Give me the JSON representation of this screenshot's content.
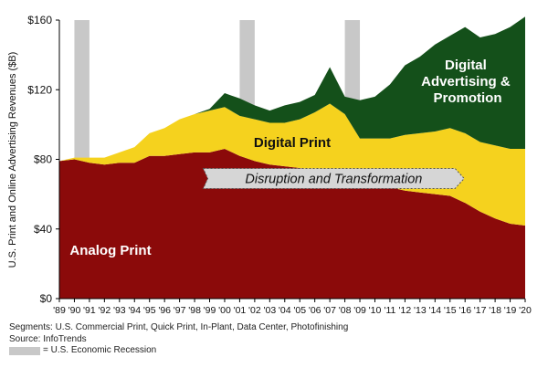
{
  "chart_data": {
    "type": "area",
    "ylabel": "U.S. Print and Online Advertising Revenues ($B)",
    "ylim": [
      0,
      160
    ],
    "yticks": [
      "$0",
      "$40",
      "$80",
      "$120",
      "$160"
    ],
    "categories": [
      "'89",
      "'90",
      "'91",
      "'92",
      "'93",
      "'94",
      "'95",
      "'96",
      "'97",
      "'98",
      "'99",
      "'00",
      "'01",
      "'02",
      "'03",
      "'04",
      "'05",
      "'06",
      "'07",
      "'08",
      "'09",
      "'10",
      "'11",
      "'12",
      "'13",
      "'14",
      "'15",
      "'16",
      "'17",
      "'18",
      "'19",
      "'20"
    ],
    "series": [
      {
        "name": "Analog Print",
        "color": "#8b0a0a",
        "values": [
          79,
          80,
          78,
          77,
          78,
          78,
          82,
          82,
          83,
          84,
          84,
          86,
          82,
          79,
          77,
          76,
          75,
          74,
          72,
          69,
          66,
          65,
          64,
          62,
          61,
          60,
          59,
          55,
          50,
          46,
          43,
          42
        ]
      },
      {
        "name": "Digital Print",
        "color": "#f5d21e",
        "values": [
          0,
          1,
          3,
          4,
          6,
          9,
          13,
          16,
          20,
          22,
          24,
          24,
          23,
          24,
          24,
          25,
          28,
          33,
          40,
          37,
          26,
          27,
          28,
          32,
          34,
          36,
          39,
          40,
          40,
          42,
          43,
          44
        ]
      },
      {
        "name": "Digital Advertising & Promotion",
        "color": "#14501a",
        "values": [
          0,
          0,
          0,
          0,
          0,
          0,
          0,
          0,
          0,
          0,
          1,
          8,
          10,
          8,
          7,
          10,
          10,
          10,
          21,
          10,
          22,
          24,
          31,
          40,
          44,
          50,
          53,
          61,
          60,
          64,
          70,
          76
        ]
      }
    ],
    "recessions": [
      [
        "'90",
        "'91"
      ],
      [
        "'01",
        "'02"
      ],
      [
        "'08",
        "'09"
      ]
    ],
    "annotations": [
      "Disruption and Transformation"
    ],
    "area_labels": {
      "analog": "Analog Print",
      "digital_print": "Digital Print",
      "digital_ad": [
        "Digital",
        "Advertising &",
        "Promotion"
      ]
    },
    "arrow": {
      "from": "'99",
      "to": "'16"
    },
    "grid": false
  },
  "footnotes": {
    "segments": "Segments: U.S. Commercial Print, Quick Print, In-Plant, Data Center, Photofinishing",
    "source": "Source: InfoTrends",
    "recession_legend": "= U.S. Economic Recession"
  },
  "colors": {
    "recession": "#c8c8c8",
    "arrow_fill": "#d6d6d6"
  }
}
